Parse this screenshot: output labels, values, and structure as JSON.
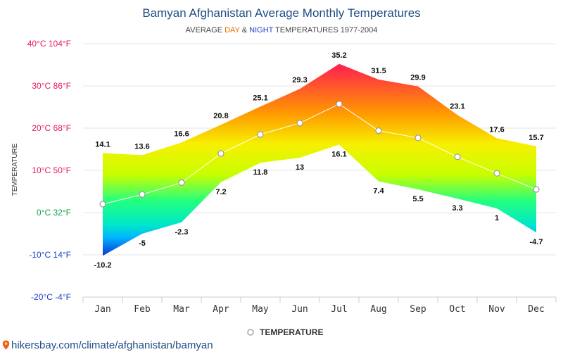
{
  "chart_data": {
    "type": "area",
    "title": "Bamyan Afghanistan Average Monthly Temperatures",
    "subtitle": {
      "prefix": "AVERAGE ",
      "day": "DAY",
      "amp": " & ",
      "night": "NIGHT",
      "suffix": " TEMPERATURES 1977-2004"
    },
    "ylabel": "TEMPERATURE",
    "categories": [
      "Jan",
      "Feb",
      "Mar",
      "Apr",
      "May",
      "Jun",
      "Jul",
      "Aug",
      "Sep",
      "Oct",
      "Nov",
      "Dec"
    ],
    "day": [
      14.1,
      13.6,
      16.6,
      20.8,
      25.1,
      29.3,
      35.2,
      31.5,
      29.9,
      23.1,
      17.6,
      15.7
    ],
    "night": [
      -10.2,
      -5,
      -2.3,
      7.2,
      11.8,
      13,
      16.1,
      7.4,
      5.5,
      3.3,
      1,
      -4.7
    ],
    "average": [
      2.0,
      4.3,
      7.1,
      14.0,
      18.5,
      21.2,
      25.7,
      19.4,
      17.7,
      13.2,
      9.3,
      5.5
    ],
    "ylim": [
      -20,
      40
    ],
    "yticks": [
      {
        "value": 40,
        "label": "40°C 104°F"
      },
      {
        "value": 30,
        "label": "30°C 86°F"
      },
      {
        "value": 20,
        "label": "20°C 68°F"
      },
      {
        "value": 10,
        "label": "10°C 50°F"
      },
      {
        "value": 0,
        "label": "0°C 32°F"
      },
      {
        "value": -10,
        "label": "-10°C 14°F"
      },
      {
        "value": -20,
        "label": "-20°C -4°F"
      }
    ],
    "legend": {
      "label": "TEMPERATURE",
      "placement": "bottom"
    },
    "grid": true
  },
  "source": {
    "text": "hikersbay.com/climate/afghanistan/bamyan"
  },
  "colors": {
    "title": "#1f4e86",
    "day_accent": "#ef6c00",
    "night_accent": "#1e40c8",
    "hot": "#ff1e50",
    "warm": "#ffd500",
    "mild": "#c8ff00",
    "cool": "#00ff8c",
    "cold": "#00c8ff",
    "freezing": "#0a3cd2"
  }
}
